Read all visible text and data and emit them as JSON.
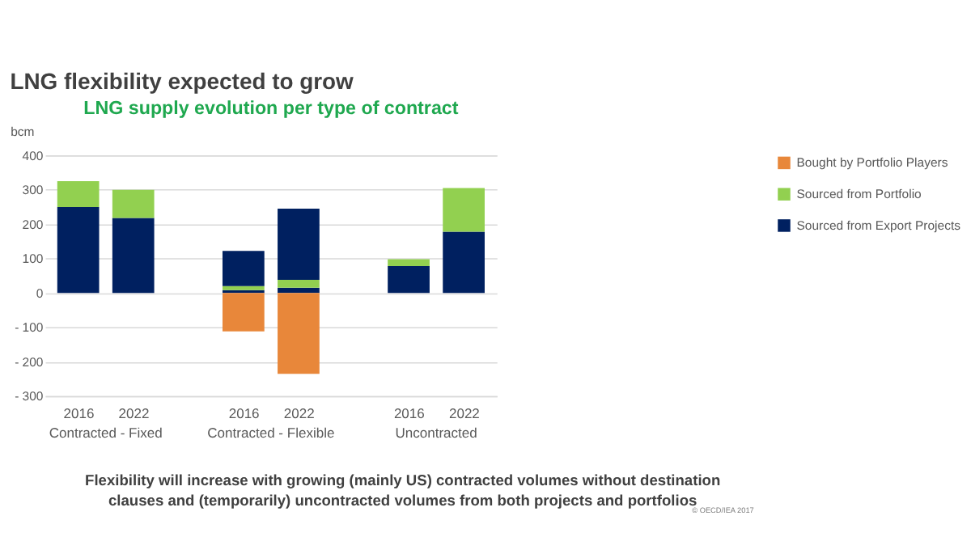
{
  "chart_data": {
    "type": "bar",
    "stacked": true,
    "title": "LNG flexibility expected to grow",
    "subtitle": "LNG supply evolution per type of contract",
    "ylabel": "bcm",
    "categories": [
      "2016",
      "2022",
      null,
      "2016",
      "2022",
      null,
      "2016",
      "2022"
    ],
    "series": [
      {
        "name": "Sourced  from Export Projects",
        "color": "#002060",
        "values": [
          250,
          218,
          null,
          8,
          15,
          null,
          78,
          178
        ]
      },
      {
        "name": "Sourced from Portfolio",
        "color": "#92d050",
        "values": [
          75,
          82,
          null,
          12,
          23,
          null,
          20,
          127
        ]
      },
      {
        "color": "#002060",
        "values": [
          null,
          null,
          null,
          102,
          207,
          null,
          null,
          null
        ]
      },
      {
        "name": "Bought by Portfolio Players",
        "color": "#e8873a",
        "values": [
          null,
          null,
          null,
          -112,
          -235,
          null,
          null,
          null
        ]
      }
    ],
    "ylim": [
      -300,
      400
    ],
    "yticks": [
      {
        "value": -300,
        "label": "- 300"
      },
      {
        "value": -200,
        "label": "- 200"
      },
      {
        "value": -100,
        "label": "- 100"
      },
      0,
      100,
      200,
      300,
      400
    ],
    "grid": "y",
    "legend": "right",
    "annotations": [
      "Contracted - Fixed",
      "Contracted - Flexible",
      "Uncontracted",
      "Flexibility will increase with growing (mainly US) contracted volumes without destination clauses and (temporarily) uncontracted volumes from both projects and portfolios",
      "© OECD/IEA 2017"
    ]
  }
}
